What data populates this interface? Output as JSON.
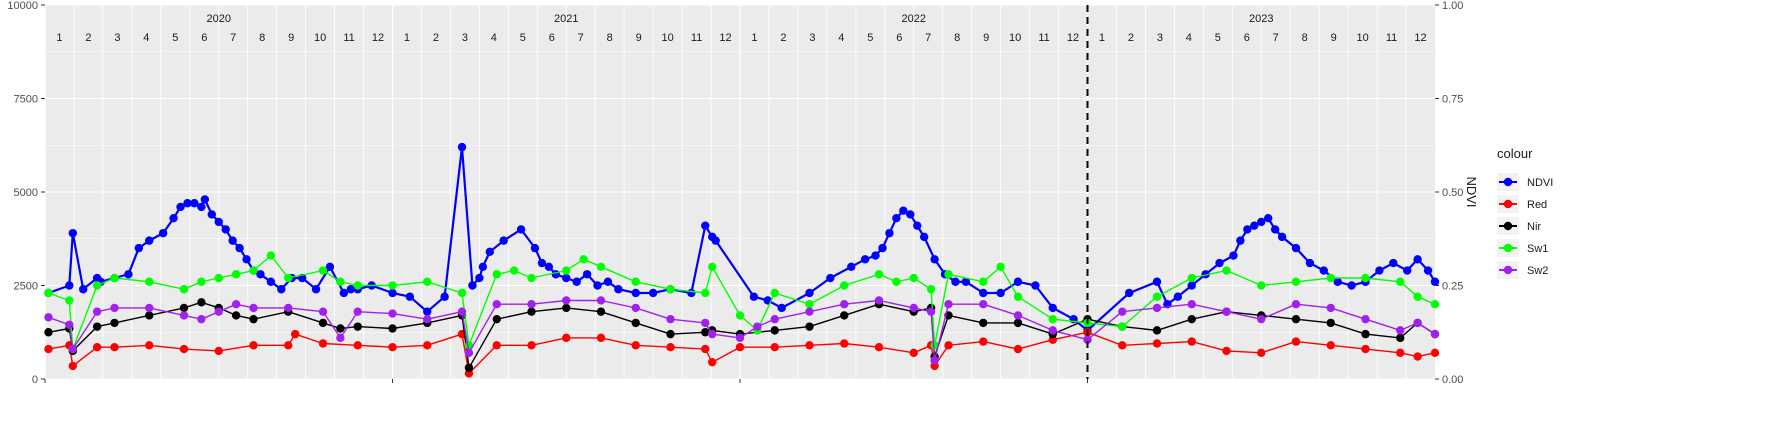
{
  "chart_data": {
    "type": "line",
    "title": "",
    "xlabel": "",
    "ylabel": "",
    "y2label": "NDVI",
    "ylim": [
      0,
      10000
    ],
    "y2lim": [
      0,
      1
    ],
    "y_ticks": [
      "0",
      "2500",
      "5000",
      "7500",
      "10000"
    ],
    "y_tick_values": [
      0,
      2500,
      5000,
      7500,
      10000
    ],
    "y2_ticks": [
      "0.00",
      "0.25",
      "0.50",
      "0.75",
      "1.00"
    ],
    "y2_tick_values": [
      0,
      0.25,
      0.5,
      0.75,
      1
    ],
    "x_range": [
      2020.0,
      2024.0
    ],
    "years": [
      {
        "label": "2020",
        "value": 2020
      },
      {
        "label": "2021",
        "value": 2021
      },
      {
        "label": "2022",
        "value": 2022
      },
      {
        "label": "2023",
        "value": 2023
      }
    ],
    "months": [
      "1",
      "2",
      "3",
      "4",
      "5",
      "6",
      "7",
      "8",
      "9",
      "10",
      "11",
      "12"
    ],
    "vline": 2023.0,
    "grid": true,
    "legend": {
      "title": "colour",
      "position": "right",
      "entries": [
        {
          "name": "NDVI",
          "color": "#0000FF"
        },
        {
          "name": "Red",
          "color": "#FF0000"
        },
        {
          "name": "Nir",
          "color": "#000000"
        },
        {
          "name": "Sw1",
          "color": "#00FF00"
        },
        {
          "name": "Sw2",
          "color": "#A020F0"
        }
      ]
    },
    "series": [
      {
        "name": "NDVI",
        "color": "#0000FF",
        "axis": "right",
        "x": [
          2020.01,
          2020.07,
          2020.08,
          2020.11,
          2020.15,
          2020.16,
          2020.2,
          2020.24,
          2020.27,
          2020.3,
          2020.34,
          2020.37,
          2020.39,
          2020.41,
          2020.43,
          2020.45,
          2020.46,
          2020.48,
          2020.5,
          2020.52,
          2020.54,
          2020.56,
          2020.58,
          2020.6,
          2020.62,
          2020.65,
          2020.68,
          2020.71,
          2020.74,
          2020.78,
          2020.82,
          2020.86,
          2020.88,
          2020.9,
          2020.94,
          2021.0,
          2021.05,
          2021.1,
          2021.15,
          2021.2,
          2021.23,
          2021.25,
          2021.26,
          2021.28,
          2021.32,
          2021.37,
          2021.41,
          2021.43,
          2021.45,
          2021.47,
          2021.5,
          2021.53,
          2021.56,
          2021.59,
          2021.62,
          2021.65,
          2021.7,
          2021.75,
          2021.8,
          2021.86,
          2021.9,
          2021.92,
          2021.93,
          2022.04,
          2022.08,
          2022.12,
          2022.2,
          2022.26,
          2022.32,
          2022.36,
          2022.39,
          2022.41,
          2022.43,
          2022.45,
          2022.47,
          2022.49,
          2022.51,
          2022.53,
          2022.56,
          2022.59,
          2022.62,
          2022.65,
          2022.7,
          2022.75,
          2022.8,
          2022.85,
          2022.9,
          2022.96,
          2023.0,
          2023.12,
          2023.2,
          2023.23,
          2023.26,
          2023.3,
          2023.34,
          2023.38,
          2023.42,
          2023.44,
          2023.46,
          2023.48,
          2023.5,
          2023.52,
          2023.54,
          2023.56,
          2023.6,
          2023.64,
          2023.68,
          2023.72,
          2023.76,
          2023.8,
          2023.84,
          2023.88,
          2023.92,
          2023.95,
          2023.98,
          2024.0
        ],
        "y": [
          0.23,
          0.25,
          0.39,
          0.24,
          0.27,
          0.26,
          0.27,
          0.28,
          0.35,
          0.37,
          0.39,
          0.43,
          0.46,
          0.47,
          0.47,
          0.46,
          0.48,
          0.44,
          0.42,
          0.4,
          0.37,
          0.35,
          0.32,
          0.29,
          0.28,
          0.26,
          0.24,
          0.27,
          0.27,
          0.24,
          0.3,
          0.23,
          0.24,
          0.24,
          0.25,
          0.23,
          0.22,
          0.18,
          0.22,
          0.62,
          0.25,
          0.27,
          0.3,
          0.34,
          0.37,
          0.4,
          0.35,
          0.31,
          0.3,
          0.28,
          0.27,
          0.26,
          0.28,
          0.25,
          0.26,
          0.24,
          0.23,
          0.23,
          0.24,
          0.23,
          0.41,
          0.38,
          0.37,
          0.22,
          0.21,
          0.19,
          0.23,
          0.27,
          0.3,
          0.32,
          0.33,
          0.35,
          0.39,
          0.43,
          0.45,
          0.44,
          0.41,
          0.38,
          0.32,
          0.28,
          0.26,
          0.26,
          0.23,
          0.23,
          0.26,
          0.25,
          0.19,
          0.16,
          0.13,
          0.23,
          0.26,
          0.2,
          0.22,
          0.25,
          0.28,
          0.31,
          0.33,
          0.37,
          0.4,
          0.41,
          0.42,
          0.43,
          0.4,
          0.38,
          0.35,
          0.31,
          0.29,
          0.26,
          0.25,
          0.26,
          0.29,
          0.31,
          0.29,
          0.32,
          0.29,
          0.26
        ]
      },
      {
        "name": "Red",
        "color": "#FF0000",
        "axis": "left",
        "x": [
          2020.01,
          2020.07,
          2020.08,
          2020.15,
          2020.2,
          2020.3,
          2020.4,
          2020.5,
          2020.6,
          2020.7,
          2020.72,
          2020.8,
          2020.9,
          2021.0,
          2021.1,
          2021.2,
          2021.22,
          2021.3,
          2021.4,
          2021.5,
          2021.6,
          2021.7,
          2021.8,
          2021.9,
          2021.92,
          2022.0,
          2022.1,
          2022.2,
          2022.3,
          2022.4,
          2022.5,
          2022.55,
          2022.56,
          2022.6,
          2022.7,
          2022.8,
          2022.9,
          2023.0,
          2023.1,
          2023.2,
          2023.3,
          2023.4,
          2023.5,
          2023.6,
          2023.7,
          2023.8,
          2023.9,
          2023.95,
          2024.0
        ],
        "y": [
          800,
          900,
          350,
          850,
          850,
          900,
          800,
          750,
          900,
          900,
          1200,
          950,
          900,
          850,
          900,
          1200,
          150,
          900,
          900,
          1100,
          1100,
          900,
          850,
          800,
          450,
          850,
          850,
          900,
          950,
          850,
          700,
          900,
          350,
          900,
          1000,
          800,
          1050,
          1250,
          900,
          950,
          1000,
          750,
          700,
          1000,
          900,
          800,
          700,
          600,
          700
        ]
      },
      {
        "name": "Nir",
        "color": "#000000",
        "axis": "left",
        "x": [
          2020.01,
          2020.07,
          2020.08,
          2020.15,
          2020.2,
          2020.3,
          2020.4,
          2020.45,
          2020.5,
          2020.55,
          2020.6,
          2020.7,
          2020.8,
          2020.85,
          2020.9,
          2021.0,
          2021.1,
          2021.2,
          2021.22,
          2021.3,
          2021.4,
          2021.5,
          2021.6,
          2021.7,
          2021.8,
          2021.9,
          2021.92,
          2022.0,
          2022.1,
          2022.2,
          2022.3,
          2022.4,
          2022.5,
          2022.55,
          2022.56,
          2022.6,
          2022.7,
          2022.8,
          2022.9,
          2023.0,
          2023.1,
          2023.2,
          2023.3,
          2023.4,
          2023.5,
          2023.6,
          2023.7,
          2023.8,
          2023.9,
          2023.95,
          2024.0
        ],
        "y": [
          1250,
          1350,
          750,
          1400,
          1500,
          1700,
          1900,
          2050,
          1900,
          1700,
          1600,
          1800,
          1500,
          1350,
          1400,
          1350,
          1500,
          1700,
          300,
          1600,
          1800,
          1900,
          1800,
          1500,
          1200,
          1250,
          1300,
          1200,
          1300,
          1400,
          1700,
          2000,
          1800,
          1900,
          600,
          1700,
          1500,
          1500,
          1200,
          1600,
          1400,
          1300,
          1600,
          1800,
          1700,
          1600,
          1500,
          1200,
          1100,
          1500,
          1200
        ]
      },
      {
        "name": "Sw1",
        "color": "#00FF00",
        "axis": "left",
        "x": [
          2020.01,
          2020.07,
          2020.08,
          2020.15,
          2020.2,
          2020.3,
          2020.4,
          2020.45,
          2020.5,
          2020.55,
          2020.6,
          2020.65,
          2020.7,
          2020.8,
          2020.85,
          2020.9,
          2021.0,
          2021.1,
          2021.2,
          2021.22,
          2021.3,
          2021.35,
          2021.4,
          2021.5,
          2021.55,
          2021.6,
          2021.7,
          2021.8,
          2021.9,
          2021.92,
          2022.0,
          2022.05,
          2022.1,
          2022.2,
          2022.3,
          2022.4,
          2022.45,
          2022.5,
          2022.55,
          2022.56,
          2022.6,
          2022.7,
          2022.75,
          2022.8,
          2022.9,
          2023.0,
          2023.1,
          2023.2,
          2023.3,
          2023.4,
          2023.5,
          2023.6,
          2023.7,
          2023.8,
          2023.9,
          2023.95,
          2024.0
        ],
        "y": [
          2300,
          2100,
          800,
          2500,
          2700,
          2600,
          2400,
          2600,
          2700,
          2800,
          2900,
          3300,
          2700,
          2900,
          2600,
          2500,
          2500,
          2600,
          2300,
          900,
          2800,
          2900,
          2700,
          2900,
          3200,
          3000,
          2600,
          2400,
          2300,
          3000,
          1700,
          1300,
          2300,
          2000,
          2500,
          2800,
          2600,
          2700,
          2400,
          900,
          2800,
          2600,
          3000,
          2200,
          1600,
          1500,
          1400,
          2200,
          2700,
          2900,
          2500,
          2600,
          2700,
          2700,
          2600,
          2200,
          2000
        ]
      },
      {
        "name": "Sw2",
        "color": "#A020F0",
        "axis": "left",
        "x": [
          2020.01,
          2020.07,
          2020.08,
          2020.15,
          2020.2,
          2020.3,
          2020.4,
          2020.45,
          2020.5,
          2020.55,
          2020.6,
          2020.7,
          2020.8,
          2020.85,
          2020.9,
          2021.0,
          2021.1,
          2021.2,
          2021.22,
          2021.3,
          2021.4,
          2021.5,
          2021.6,
          2021.7,
          2021.8,
          2021.9,
          2021.92,
          2022.0,
          2022.05,
          2022.1,
          2022.2,
          2022.3,
          2022.4,
          2022.5,
          2022.55,
          2022.56,
          2022.6,
          2022.7,
          2022.8,
          2022.9,
          2023.0,
          2023.1,
          2023.2,
          2023.3,
          2023.4,
          2023.5,
          2023.6,
          2023.7,
          2023.8,
          2023.9,
          2023.95,
          2024.0
        ],
        "y": [
          1650,
          1450,
          800,
          1800,
          1900,
          1900,
          1700,
          1600,
          1800,
          2000,
          1900,
          1900,
          1800,
          1100,
          1800,
          1750,
          1600,
          1800,
          700,
          2000,
          2000,
          2100,
          2100,
          1900,
          1600,
          1500,
          1200,
          1100,
          1400,
          1600,
          1800,
          2000,
          2100,
          1900,
          1800,
          500,
          2000,
          2000,
          1700,
          1300,
          1050,
          1800,
          1900,
          2000,
          1800,
          1600,
          2000,
          1900,
          1600,
          1300,
          1500,
          1200
        ]
      }
    ]
  }
}
